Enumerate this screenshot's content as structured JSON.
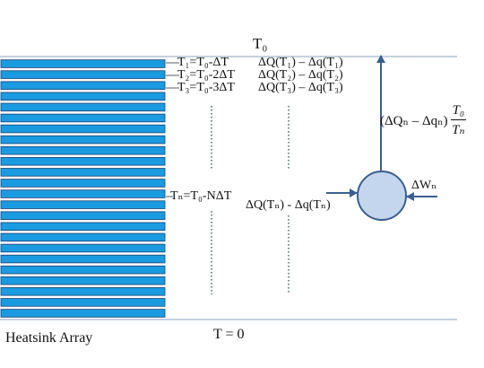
{
  "diagram": {
    "top_temperature": "T₀",
    "bottom_temperature": "T = 0",
    "array_label": "Heatsink Array",
    "levels": [
      {
        "temperature": "T₁=T₀-ΔT",
        "heat_flow": "ΔQ(T₁) – Δq(T₁)"
      },
      {
        "temperature": "T₂=T₀-2ΔT",
        "heat_flow": "ΔQ(T₂) – Δq(T₂)"
      },
      {
        "temperature": "T₃=T₀-3ΔT",
        "heat_flow": "ΔQ(T₃) – Δq(T₃)"
      }
    ],
    "level_n": {
      "temperature": "Tₙ=T₀-NΔT",
      "heat_flow": "ΔQ(Tₙ) - Δq(Tₙ)"
    },
    "engine_output": {
      "expression": "(ΔQₙ – Δqₙ)",
      "numerator": "T₀",
      "denominator": "Tₙ"
    },
    "work_input": "ΔWₙ",
    "fin_count": 24,
    "colors": {
      "fin_fill": "#1a9be0",
      "fin_stroke": "#1c3f73",
      "arrow": "#3a5f8f",
      "engine_fill": "#c4d6ee",
      "engine_stroke": "#3a5f8f",
      "reservoir_line": "#8da2bf",
      "dotted_line": "#2a6a55"
    }
  }
}
